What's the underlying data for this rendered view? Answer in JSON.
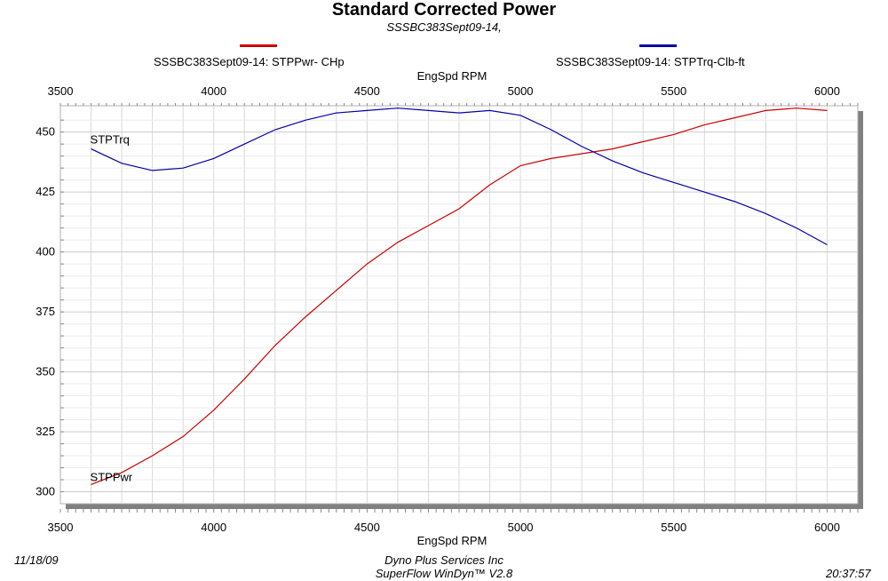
{
  "chart_data": {
    "type": "line",
    "title": "Standard Corrected Power",
    "subtitle": "SSSBC383Sept09-14,",
    "xlabel_top": "EngSpd  RPM",
    "xlabel_bottom": "EngSpd  RPM",
    "xlim": [
      3500,
      6100
    ],
    "ylim": [
      295,
      461
    ],
    "x_ticks": [
      3500,
      4000,
      4500,
      5000,
      5500,
      6000
    ],
    "y_ticks": [
      300,
      325,
      350,
      375,
      400,
      425,
      450
    ],
    "grid": true,
    "legend": [
      {
        "label": "SSSBC383Sept09-14: STPPwr- CHp",
        "color": "#cc0000"
      },
      {
        "label": "SSSBC383Sept09-14: STPTrq-Clb-ft",
        "color": "#0000aa"
      }
    ],
    "series": [
      {
        "name": "STPPwr",
        "color": "#cc0000",
        "x": [
          3600,
          3700,
          3800,
          3900,
          4000,
          4100,
          4200,
          4300,
          4400,
          4500,
          4600,
          4700,
          4800,
          4900,
          5000,
          5100,
          5200,
          5300,
          5400,
          5500,
          5600,
          5700,
          5800,
          5900,
          6000
        ],
        "y": [
          303,
          308,
          315,
          323,
          334,
          347,
          361,
          373,
          384,
          395,
          404,
          411,
          418,
          428,
          436,
          439,
          441,
          443,
          446,
          449,
          453,
          456,
          459,
          460,
          459
        ]
      },
      {
        "name": "STPTrq",
        "color": "#0000aa",
        "x": [
          3600,
          3700,
          3800,
          3900,
          4000,
          4100,
          4200,
          4300,
          4400,
          4500,
          4600,
          4700,
          4800,
          4900,
          5000,
          5100,
          5200,
          5300,
          5400,
          5500,
          5600,
          5700,
          5800,
          5900,
          6000
        ],
        "y": [
          443,
          437,
          434,
          435,
          439,
          445,
          451,
          455,
          458,
          459,
          460,
          459,
          458,
          459,
          457,
          451,
          444,
          438,
          433,
          429,
          425,
          421,
          416,
          410,
          403
        ]
      }
    ]
  },
  "footer": {
    "date": "11/18/09",
    "company": "Dyno Plus Services Inc",
    "software": "SuperFlow WinDyn™ V2.8",
    "time": "20:37:57"
  }
}
